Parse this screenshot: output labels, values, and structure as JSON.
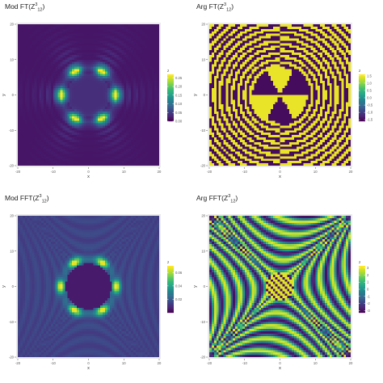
{
  "chart_data": [
    {
      "type": "heatmap",
      "title_main": "Mod FT(Z",
      "title_sup": "3",
      "title_sub": "12",
      "title_end": ")",
      "xlabel": "x",
      "ylabel": "y",
      "xlim": [
        -20,
        20
      ],
      "ylim": [
        -20,
        20
      ],
      "xticks": [
        "-20",
        "-10",
        "0",
        "10",
        "20"
      ],
      "yticks": [
        "-20",
        "-10",
        "0",
        "10",
        "20"
      ],
      "legend_title": "z",
      "legend_ticks": [
        "0.25",
        "0.20",
        "0.15",
        "0.10",
        "0.05",
        "0.00"
      ],
      "legend_values": [
        0.25,
        0.2,
        0.15,
        0.1,
        0.05,
        0.0
      ],
      "zlim": [
        0,
        0.27
      ],
      "pattern": "mod-smooth",
      "grid": true,
      "legend": "right"
    },
    {
      "type": "heatmap",
      "title_main": "Arg FT(Z",
      "title_sup": "3",
      "title_sub": "12",
      "title_end": ")",
      "xlabel": "x",
      "ylabel": "y",
      "xlim": [
        -20,
        20
      ],
      "ylim": [
        -20,
        20
      ],
      "xticks": [
        "-20",
        "-10",
        "0",
        "10",
        "20"
      ],
      "yticks": [
        "-20",
        "-10",
        "0",
        "10",
        "20"
      ],
      "legend_title": "z",
      "legend_ticks": [
        "1.5",
        "1.0",
        "0.5",
        "0.0",
        "-0.5",
        "-1.0",
        "-1.5"
      ],
      "legend_values": [
        1.5,
        1.0,
        0.5,
        0.0,
        -0.5,
        -1.0,
        -1.5
      ],
      "zlim": [
        -1.6,
        1.6
      ],
      "pattern": "arg-smooth",
      "grid": true,
      "legend": "right"
    },
    {
      "type": "heatmap",
      "title_main": "Mod FFT(Z",
      "title_sup": "3",
      "title_sub": "12",
      "title_end": ")",
      "xlabel": "x",
      "ylabel": "y",
      "xlim": [
        -20,
        20
      ],
      "ylim": [
        -20,
        20
      ],
      "xticks": [
        "-20",
        "-10",
        "0",
        "10",
        "20"
      ],
      "yticks": [
        "-20",
        "-10",
        "0",
        "10",
        "20"
      ],
      "legend_title": "z",
      "legend_ticks": [
        "0.06",
        "0.04",
        "0.02"
      ],
      "legend_values": [
        0.06,
        0.04,
        0.02
      ],
      "zlim": [
        0,
        0.07
      ],
      "pattern": "mod-pixel",
      "grid": true,
      "legend": "right"
    },
    {
      "type": "heatmap",
      "title_main": "Arg FFT(Z",
      "title_sup": "3",
      "title_sub": "12",
      "title_end": ")",
      "xlabel": "x",
      "ylabel": "y",
      "xlim": [
        -20,
        20
      ],
      "ylim": [
        -20,
        20
      ],
      "xticks": [
        "-20",
        "-10",
        "0",
        "10",
        "20"
      ],
      "yticks": [
        "-20",
        "-10",
        "0",
        "10",
        "20"
      ],
      "legend_title": "z",
      "legend_ticks": [
        "3",
        "2",
        "1",
        "0",
        "-1",
        "-2",
        "-3"
      ],
      "legend_values": [
        3,
        2,
        1,
        0,
        -1,
        -2,
        -3
      ],
      "zlim": [
        -3.3,
        3.3
      ],
      "pattern": "arg-pixel",
      "grid": true,
      "legend": "right"
    }
  ]
}
